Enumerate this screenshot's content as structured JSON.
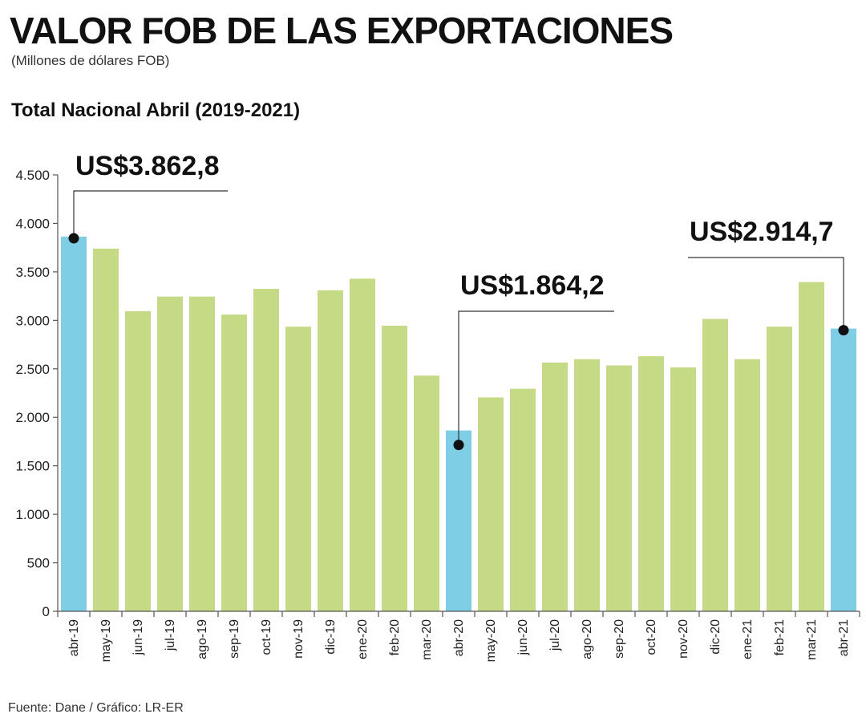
{
  "header": {
    "title": "VALOR FOB DE LAS EXPORTACIONES",
    "subtitle": "(Millones de dólares FOB)",
    "section_title": "Total Nacional Abril (2019-2021)"
  },
  "footer": {
    "source": "Fuente: Dane / Gráfico: LR-ER"
  },
  "colors": {
    "highlight": "#7ecfe5",
    "normal": "#c5da84",
    "axis": "#555555",
    "callout": "#111111"
  },
  "chart_data": {
    "type": "bar",
    "title": "Total Nacional Abril (2019-2021)",
    "ylabel": "",
    "xlabel": "",
    "ylim": [
      0,
      4500
    ],
    "yticks": [
      0,
      500,
      1000,
      1500,
      2000,
      2500,
      3000,
      3500,
      4000,
      4500
    ],
    "ytick_labels": [
      "0",
      "500",
      "1.000",
      "1.500",
      "2.000",
      "2.500",
      "3.000",
      "3.500",
      "4.000",
      "4.500"
    ],
    "categories": [
      "abr-19",
      "may-19",
      "jun-19",
      "jul-19",
      "ago-19",
      "sep-19",
      "oct-19",
      "nov-19",
      "dic-19",
      "ene-20",
      "feb-20",
      "mar-20",
      "abr-20",
      "may-20",
      "jun-20",
      "jul-20",
      "ago-20",
      "sep-20",
      "oct-20",
      "nov-20",
      "dic-20",
      "ene-21",
      "feb-21",
      "mar-21",
      "abr-21"
    ],
    "values": [
      3862.8,
      3740,
      3095,
      3245,
      3245,
      3060,
      3325,
      2935,
      3310,
      3430,
      2945,
      2430,
      1864.2,
      2205,
      2295,
      2565,
      2600,
      2535,
      2630,
      2515,
      3015,
      2600,
      2935,
      3395,
      2914.7
    ],
    "highlighted": [
      "abr-19",
      "abr-20",
      "abr-21"
    ],
    "annotations": [
      {
        "category": "abr-19",
        "text": "US$3.862,8",
        "side": "right"
      },
      {
        "category": "abr-20",
        "text": "US$1.864,2",
        "side": "right"
      },
      {
        "category": "abr-21",
        "text": "US$2.914,7",
        "side": "left"
      }
    ],
    "grid": false,
    "legend": "none"
  }
}
